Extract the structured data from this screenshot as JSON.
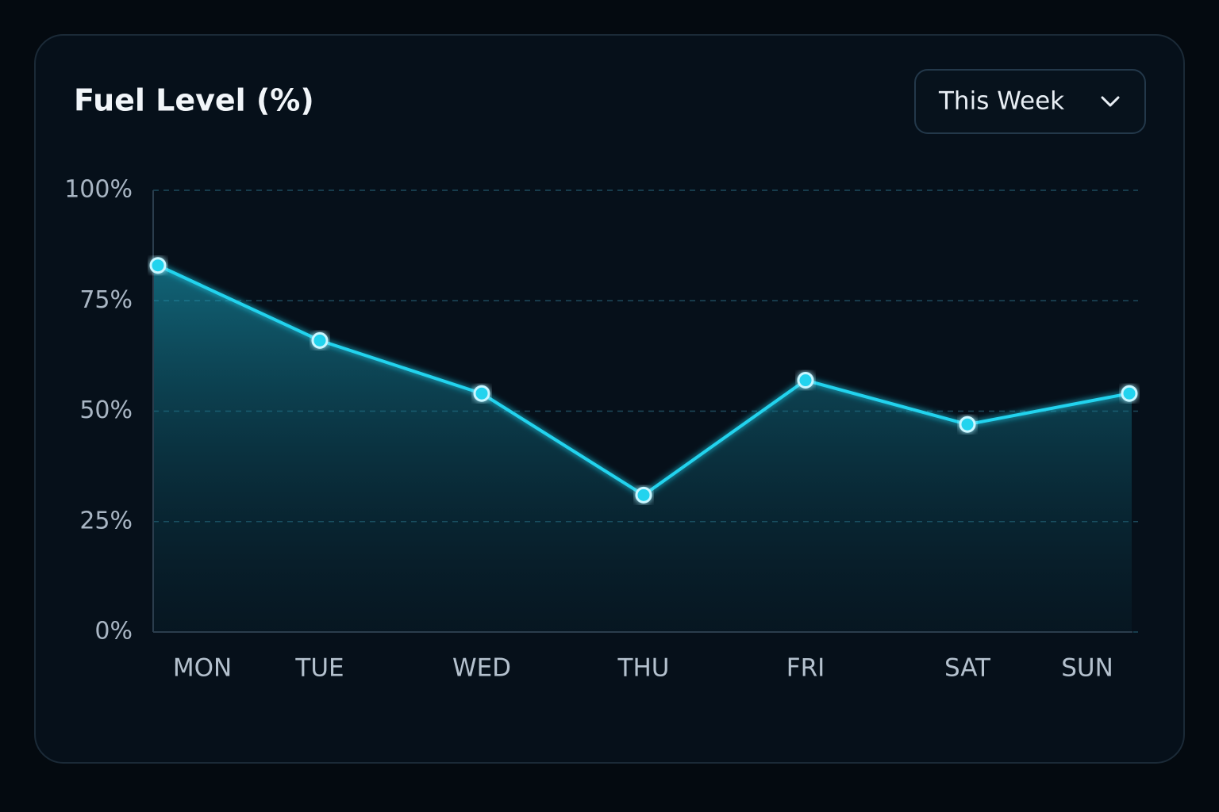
{
  "chart_data": {
    "type": "line",
    "title": "Fuel Level (%)",
    "categories": [
      "MON",
      "TUE",
      "WED",
      "THU",
      "FRI",
      "SAT",
      "SUN"
    ],
    "values": [
      83,
      66,
      54,
      31,
      57,
      47,
      54
    ],
    "color": "#22d3ee",
    "ylim": [
      0,
      100
    ],
    "yticks": [
      {
        "value": 0,
        "label": "0%"
      },
      {
        "value": 25,
        "label": "25%"
      },
      {
        "value": 50,
        "label": "50%"
      },
      {
        "value": 75,
        "label": "75%"
      },
      {
        "value": 100,
        "label": "100%"
      }
    ],
    "grid": true
  },
  "dropdown": {
    "label": "This Week"
  }
}
